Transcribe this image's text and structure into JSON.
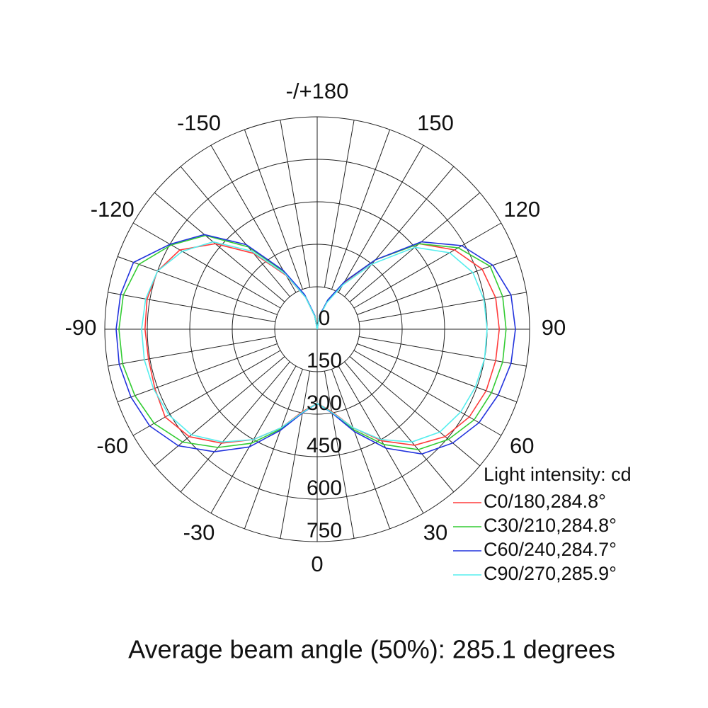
{
  "chart_data": {
    "type": "polar",
    "note": "Average beam angle (50%): 285.1 degrees",
    "legend_title": "Light intensity: cd",
    "x": [
      -180,
      -170,
      -160,
      -150,
      -140,
      -130,
      -120,
      -110,
      -100,
      -90,
      -80,
      -70,
      -60,
      -50,
      -40,
      -30,
      -20,
      -10,
      0,
      10,
      20,
      30,
      40,
      50,
      60,
      70,
      80,
      90,
      100,
      110,
      120,
      130,
      140,
      150,
      160,
      170,
      180
    ],
    "series": [
      {
        "name": "C0/180,284.8°",
        "color": "#ff3b3b",
        "values": [
          0,
          45,
          120,
          220,
          350,
          470,
          560,
          600,
          610,
          608,
          605,
          610,
          620,
          590,
          525,
          450,
          370,
          295,
          262,
          295,
          370,
          455,
          535,
          590,
          620,
          635,
          640,
          643,
          640,
          620,
          560,
          470,
          320,
          190,
          105,
          45,
          0
        ]
      },
      {
        "name": "C30/210,284.8°",
        "color": "#33cc33",
        "values": [
          0,
          48,
          128,
          235,
          380,
          515,
          595,
          670,
          695,
          700,
          698,
          685,
          665,
          620,
          545,
          465,
          375,
          298,
          262,
          298,
          378,
          470,
          555,
          605,
          640,
          655,
          665,
          667,
          665,
          650,
          575,
          470,
          320,
          195,
          110,
          48,
          0
        ]
      },
      {
        "name": "C60/240,284.7°",
        "color": "#2233dd",
        "values": [
          0,
          50,
          130,
          240,
          390,
          520,
          600,
          690,
          705,
          710,
          710,
          700,
          683,
          640,
          565,
          480,
          380,
          300,
          262,
          300,
          385,
          485,
          575,
          625,
          660,
          680,
          695,
          700,
          695,
          660,
          590,
          480,
          320,
          195,
          110,
          50,
          0
        ]
      },
      {
        "name": "C90/270,285.9°",
        "color": "#55eeee",
        "values": [
          0,
          45,
          120,
          225,
          360,
          480,
          550,
          600,
          615,
          620,
          620,
          615,
          605,
          580,
          520,
          450,
          370,
          298,
          262,
          298,
          370,
          450,
          520,
          565,
          585,
          595,
          600,
          600,
          598,
          585,
          540,
          450,
          300,
          180,
          100,
          45,
          0
        ]
      }
    ],
    "rlim": [
      0,
      750
    ],
    "rticks": [
      0,
      150,
      300,
      450,
      600,
      750
    ],
    "angle_ticks": [
      {
        "value": 180,
        "label": "-/+180"
      },
      150,
      120,
      90,
      60,
      30,
      0,
      -30,
      -60,
      -90,
      -120,
      -150
    ]
  }
}
